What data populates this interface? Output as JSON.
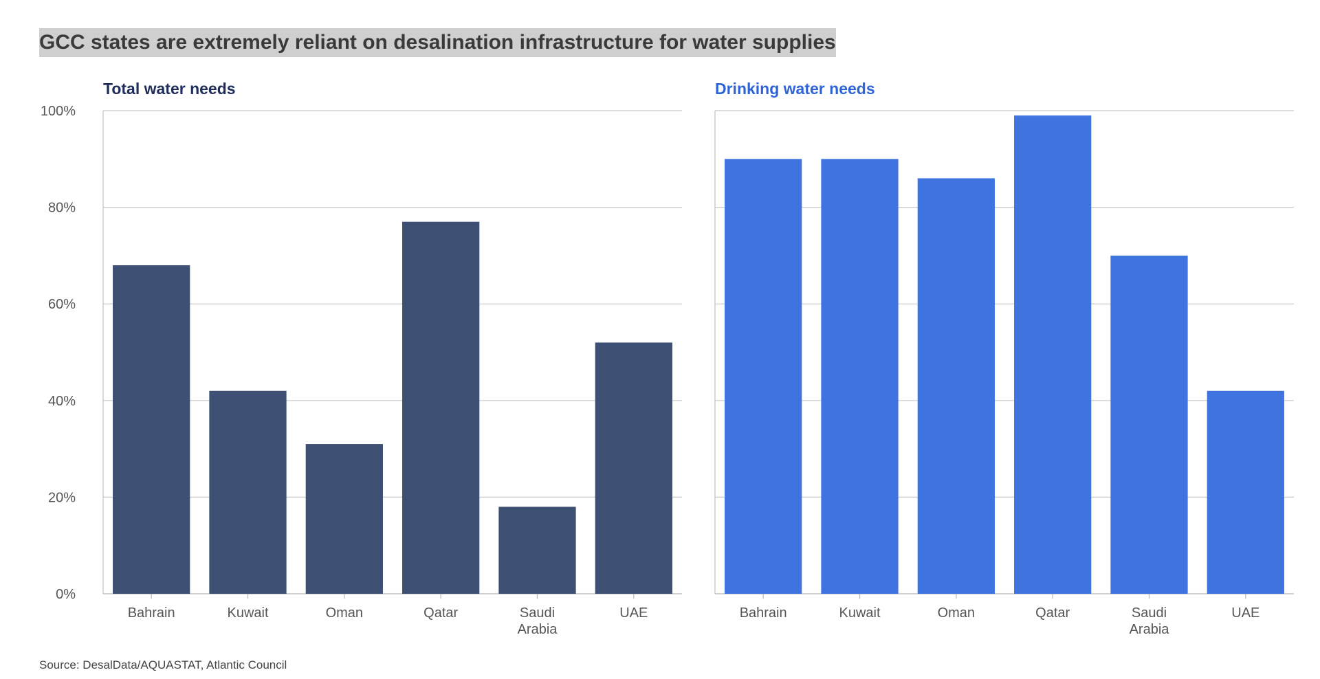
{
  "title": "GCC states are extremely reliant on desalination infrastructure for water supplies",
  "source": "Source: DesalData/AQUASTAT, Atlantic Council",
  "chart_data": [
    {
      "type": "bar",
      "title": "Total water needs",
      "color": "#3d4f73",
      "title_color": "#1f2d5a",
      "categories": [
        "Bahrain",
        "Kuwait",
        "Oman",
        "Qatar",
        "Saudi\nArabia",
        "UAE"
      ],
      "values": [
        68,
        42,
        31,
        77,
        18,
        52
      ],
      "ylim": [
        0,
        100
      ],
      "yticks": [
        "0%",
        "20%",
        "40%",
        "60%",
        "80%",
        "100%"
      ],
      "grid": true
    },
    {
      "type": "bar",
      "title": "Drinking water needs",
      "color": "#3f74e0",
      "title_color": "#2f64d6",
      "categories": [
        "Bahrain",
        "Kuwait",
        "Oman",
        "Qatar",
        "Saudi\nArabia",
        "UAE"
      ],
      "values": [
        90,
        90,
        86,
        99,
        70,
        42
      ],
      "ylim": [
        0,
        100
      ],
      "grid": true
    }
  ]
}
